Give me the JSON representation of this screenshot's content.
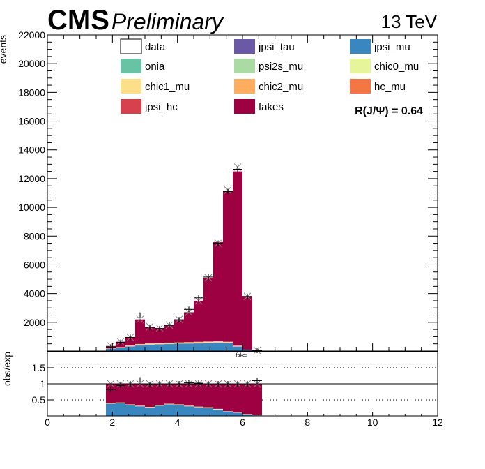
{
  "header": {
    "experiment": "CMS",
    "status": "Preliminary",
    "energy": "13 TeV"
  },
  "annotation": "R(J/Ψ) = 0.64",
  "colors": {
    "jpsi_tau": "#6a5aa6",
    "jpsi_mu": "#3a86bf",
    "onia": "#68c2a4",
    "psi2s_mu": "#a9dba3",
    "chic0_mu": "#e6f49a",
    "chic1_mu": "#fddf8a",
    "chic2_mu": "#fdae61",
    "hc_mu": "#f47645",
    "jpsi_hc": "#d7414e",
    "fakes": "#9e0142"
  },
  "chart_data": [
    {
      "type": "bar",
      "stacked": true,
      "ylabel": "events",
      "xlim": [
        0,
        12
      ],
      "ylim": [
        0,
        22000
      ],
      "yticks": [
        0,
        2000,
        4000,
        6000,
        8000,
        10000,
        12000,
        14000,
        16000,
        18000,
        20000,
        22000
      ],
      "bin_width": 0.3,
      "bin_edges": [
        1.8,
        2.1,
        2.4,
        2.7,
        3.0,
        3.3,
        3.6,
        3.9,
        4.2,
        4.5,
        4.8,
        5.1,
        5.4,
        5.7,
        6.0,
        6.3,
        6.6
      ],
      "legend": {
        "placement": "top",
        "entries": [
          "data",
          "jpsi_tau",
          "jpsi_mu",
          "onia",
          "psi2s_mu",
          "chic0_mu",
          "chic1_mu",
          "chic2_mu",
          "hc_mu",
          "jpsi_hc",
          "fakes"
        ]
      },
      "series": [
        {
          "name": "jpsi_mu",
          "values": [
            150,
            210,
            300,
            380,
            420,
            440,
            470,
            490,
            500,
            520,
            540,
            560,
            540,
            300,
            80,
            10
          ]
        },
        {
          "name": "jpsi_tau",
          "values": [
            10,
            15,
            20,
            25,
            25,
            25,
            25,
            25,
            25,
            25,
            25,
            25,
            20,
            15,
            5,
            0
          ]
        },
        {
          "name": "psi2s_mu",
          "values": [
            10,
            15,
            20,
            20,
            20,
            20,
            20,
            20,
            20,
            20,
            20,
            20,
            20,
            10,
            5,
            0
          ]
        },
        {
          "name": "chic0_mu",
          "values": [
            0,
            0,
            0,
            5,
            5,
            5,
            5,
            5,
            5,
            5,
            5,
            5,
            5,
            5,
            0,
            0
          ]
        },
        {
          "name": "chic1_mu",
          "values": [
            10,
            15,
            20,
            25,
            30,
            30,
            30,
            30,
            35,
            35,
            35,
            35,
            30,
            20,
            5,
            0
          ]
        },
        {
          "name": "chic2_mu",
          "values": [
            5,
            10,
            15,
            20,
            20,
            20,
            20,
            20,
            25,
            25,
            25,
            25,
            20,
            15,
            5,
            0
          ]
        },
        {
          "name": "hc_mu",
          "values": [
            0,
            5,
            5,
            5,
            5,
            5,
            5,
            5,
            5,
            5,
            5,
            5,
            5,
            5,
            0,
            0
          ]
        },
        {
          "name": "onia",
          "values": [
            0,
            0,
            5,
            5,
            5,
            5,
            5,
            5,
            5,
            5,
            5,
            5,
            5,
            5,
            0,
            0
          ]
        },
        {
          "name": "jpsi_hc",
          "values": [
            5,
            5,
            5,
            5,
            5,
            5,
            5,
            5,
            5,
            5,
            5,
            5,
            5,
            5,
            0,
            0
          ]
        },
        {
          "name": "fakes",
          "values": [
            160,
            375,
            560,
            1710,
            1165,
            1045,
            1215,
            1595,
            2075,
            2855,
            4435,
            6895,
            10450,
            12120,
            3700,
            40
          ]
        }
      ],
      "data_points": {
        "name": "data",
        "x": [
          1.95,
          2.25,
          2.55,
          2.85,
          3.15,
          3.45,
          3.75,
          4.05,
          4.35,
          4.65,
          4.95,
          5.25,
          5.55,
          5.85,
          6.15,
          6.45
        ],
        "y": [
          280,
          600,
          950,
          2500,
          1650,
          1560,
          1800,
          2180,
          2900,
          3700,
          5150,
          7500,
          11100,
          12650,
          3800,
          50
        ]
      },
      "mc_uncertainty_markers": {
        "x": [
          1.95,
          2.25,
          2.55,
          2.85,
          3.15,
          3.45,
          3.75,
          4.05,
          4.35,
          4.65,
          4.95,
          5.25,
          5.55,
          5.85,
          6.15,
          6.45
        ],
        "y": [
          355,
          650,
          950,
          2200,
          1700,
          1600,
          1800,
          2200,
          2700,
          3500,
          5100,
          7500,
          11200,
          12800,
          3800,
          50
        ]
      }
    },
    {
      "type": "bar",
      "stacked": true,
      "role": "ratio",
      "ylabel": "obs/exp",
      "xlim": [
        0,
        12
      ],
      "ylim": [
        0,
        2
      ],
      "yticks": [
        0.5,
        1,
        1.5
      ],
      "xticks": [
        0,
        2,
        4,
        6,
        8,
        10,
        12
      ],
      "reference_lines": [
        0.5,
        1,
        1.5
      ],
      "label": "fakes",
      "bin_edges": [
        1.8,
        2.1,
        2.4,
        2.7,
        3.0,
        3.3,
        3.6,
        3.9,
        4.2,
        4.5,
        4.8,
        5.1,
        5.4,
        5.7,
        6.0,
        6.3,
        6.6
      ],
      "series": [
        {
          "name": "jpsi_mu",
          "values": [
            0.38,
            0.4,
            0.34,
            0.3,
            0.26,
            0.32,
            0.36,
            0.34,
            0.3,
            0.27,
            0.25,
            0.2,
            0.14,
            0.1,
            0.05,
            0.02
          ]
        },
        {
          "name": "chic1_mu",
          "values": [
            0.02,
            0.02,
            0.02,
            0.02,
            0.02,
            0.02,
            0.02,
            0.02,
            0.02,
            0.02,
            0.02,
            0.02,
            0.01,
            0.01,
            0.01,
            0.01
          ]
        },
        {
          "name": "fakes",
          "values": [
            0.6,
            0.58,
            0.64,
            0.68,
            0.72,
            0.66,
            0.62,
            0.64,
            0.68,
            0.71,
            0.73,
            0.78,
            0.85,
            0.89,
            0.94,
            0.97
          ]
        }
      ],
      "data_points": {
        "x": [
          1.95,
          2.25,
          2.55,
          2.85,
          3.15,
          3.45,
          3.75,
          4.05,
          4.35,
          4.65,
          4.95,
          5.25,
          5.55,
          5.85,
          6.15,
          6.45
        ],
        "y": [
          0.82,
          0.95,
          1.0,
          1.12,
          0.97,
          1.0,
          1.0,
          1.0,
          1.03,
          1.02,
          1.0,
          1.0,
          1.0,
          1.0,
          1.0,
          1.1
        ]
      },
      "mc_uncertainty_markers": {
        "x": [
          1.95,
          2.25,
          2.55,
          2.85,
          3.15,
          3.45,
          3.75,
          4.05,
          4.35,
          4.65,
          4.95,
          5.25,
          5.55,
          5.85,
          6.15,
          6.45
        ],
        "y": [
          1.0,
          1.0,
          1.0,
          1.0,
          1.0,
          1.0,
          1.0,
          1.0,
          1.0,
          1.0,
          1.0,
          1.0,
          1.0,
          1.0,
          1.0,
          1.0
        ]
      }
    }
  ]
}
